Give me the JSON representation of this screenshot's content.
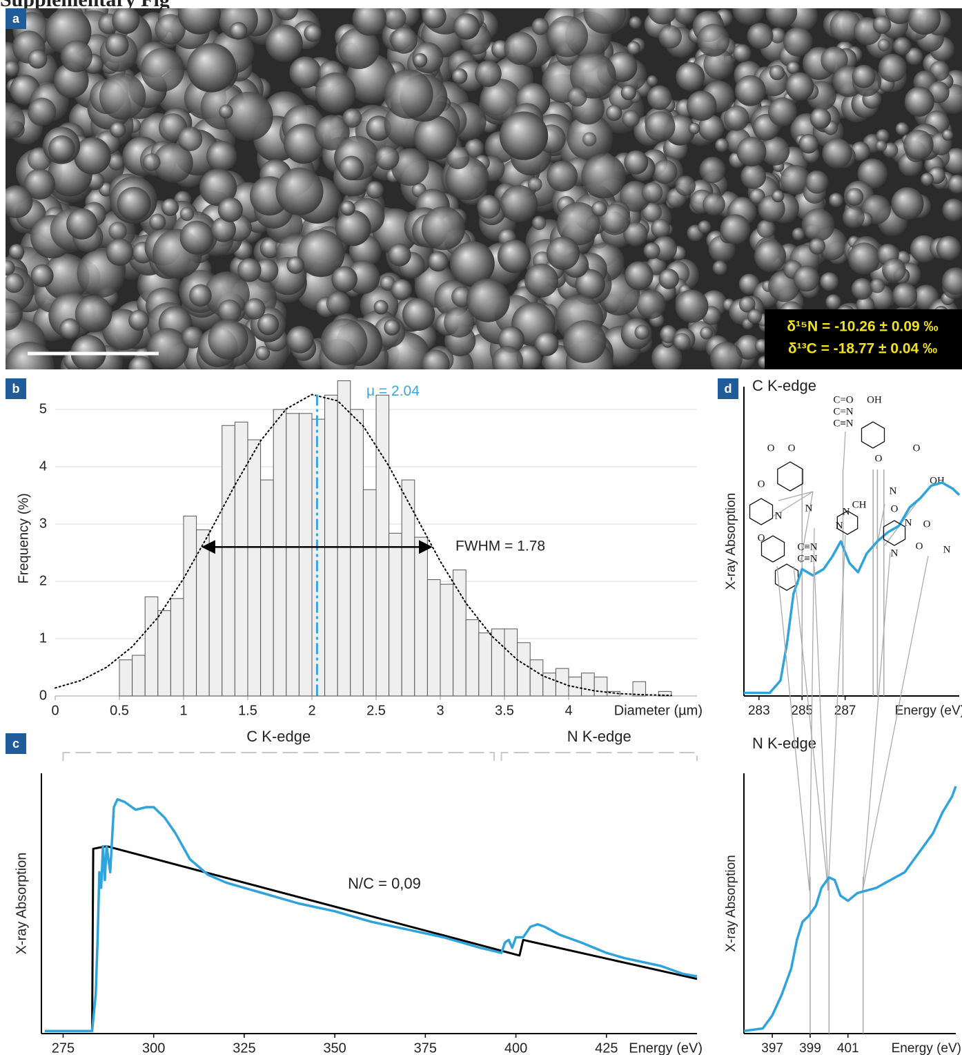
{
  "header": {
    "title": "Supplementary Fig"
  },
  "panel_a": {
    "label": "a",
    "annotations": [
      "δ¹⁵N = -10.26 ± 0.09 ‰",
      "δ¹³C = -18.77 ± 0.04 ‰"
    ]
  },
  "chart_data": [
    {
      "type": "histogram",
      "panel_label": "b",
      "bins": [
        0.5,
        0.6,
        0.7,
        0.8,
        0.9,
        1,
        1.1,
        1.2,
        1.3,
        1.4,
        1.5,
        1.6,
        1.7,
        1.8,
        1.9,
        2,
        2.1,
        2.2,
        2.3,
        2.4,
        2.5,
        2.6,
        2.7,
        2.8,
        2.9,
        3,
        3.1,
        3.2,
        3.3,
        3.4,
        3.5,
        3.6,
        3.7,
        3.8,
        3.9,
        4,
        4.1,
        4.2,
        4.3,
        4.4,
        4.5,
        4.6,
        4.7,
        4.8
      ],
      "values": [
        0.63,
        0.71,
        1.73,
        1.49,
        1.7,
        3.14,
        2.9,
        2.6,
        4.72,
        4.78,
        4.47,
        3.77,
        5.0,
        4.93,
        4.93,
        4.83,
        5.25,
        5.5,
        5.0,
        3.6,
        5.25,
        2.84,
        3.77,
        2.77,
        2.03,
        1.95,
        2.2,
        1.33,
        1.1,
        1.17,
        1.17,
        0.93,
        0.63,
        0.4,
        0.48,
        0.33,
        0.4,
        0.33,
        0.08,
        0,
        0.25,
        0,
        0.08
      ],
      "color": "#efefef",
      "xlim": [
        0,
        5
      ],
      "ylim": [
        0,
        5.5
      ],
      "xticks": [
        0,
        0.5,
        1,
        1.5,
        2,
        2.5,
        3,
        3.5,
        4
      ],
      "yticks": [
        0,
        1,
        2,
        3,
        4,
        5
      ],
      "grid": true,
      "xlabel": "Diameter (µm)",
      "ylabel": "Frequency (%)",
      "fit": {
        "x": [
          0,
          0.2,
          0.4,
          0.6,
          0.8,
          1,
          1.2,
          1.4,
          1.6,
          1.8,
          2,
          2.2,
          2.4,
          2.6,
          2.8,
          3,
          3.2,
          3.4,
          3.6,
          3.8,
          4,
          4.2,
          4.4,
          4.6,
          4.8
        ],
        "values": [
          0.14,
          0.27,
          0.5,
          0.86,
          1.37,
          2.05,
          2.84,
          3.68,
          4.45,
          5.01,
          5.26,
          5.15,
          4.71,
          4.01,
          3.18,
          2.35,
          1.62,
          1.05,
          0.63,
          0.35,
          0.18,
          0.09,
          0.04,
          0.02,
          0.01
        ]
      },
      "mean": {
        "value": 2.04,
        "label": "μ = 2.04",
        "color": "#3ba6d9"
      },
      "fwhm": {
        "label": "FWHM = 1.78",
        "x": [
          1.15,
          2.93
        ],
        "y": 2.6
      }
    },
    {
      "type": "line",
      "panel_label": "c",
      "xlim": [
        269,
        450
      ],
      "ylim": [
        0,
        1
      ],
      "xticks": [
        275,
        300,
        325,
        350,
        375,
        400,
        425
      ],
      "xlabel": "Energy (eV)",
      "ylabel": "X-ray Absorption",
      "series": [
        {
          "color": "#2ea3dc",
          "x": [
            270,
            283,
            284,
            284.5,
            285,
            285.5,
            286,
            286.5,
            287,
            288,
            289,
            290,
            292,
            295,
            298,
            300,
            303,
            306,
            310,
            315,
            320,
            325,
            330,
            340,
            350,
            360,
            370,
            380,
            390,
            396,
            397,
            398,
            399,
            400,
            402,
            404,
            406,
            408,
            412,
            418,
            425,
            430,
            440,
            446,
            450
          ],
          "values": [
            0.01,
            0.01,
            0.15,
            0.36,
            0.62,
            0.56,
            0.72,
            0.59,
            0.72,
            0.62,
            0.87,
            0.9,
            0.89,
            0.86,
            0.87,
            0.87,
            0.83,
            0.77,
            0.67,
            0.61,
            0.58,
            0.56,
            0.54,
            0.5,
            0.47,
            0.43,
            0.4,
            0.37,
            0.33,
            0.31,
            0.35,
            0.36,
            0.33,
            0.37,
            0.37,
            0.41,
            0.42,
            0.41,
            0.38,
            0.35,
            0.31,
            0.29,
            0.26,
            0.23,
            0.22
          ]
        },
        {
          "color": "#000000",
          "x": [
            270,
            283,
            283.3,
            287,
            401,
            402,
            450
          ],
          "values": [
            0.01,
            0.01,
            0.71,
            0.72,
            0.3,
            0.36,
            0.21
          ]
        }
      ],
      "brackets": [
        {
          "label": "C K-edge",
          "range": [
            275,
            394
          ]
        },
        {
          "label": "N K-edge",
          "range": [
            396,
            450
          ]
        }
      ],
      "annotation": "N/C = 0,09"
    },
    {
      "type": "line",
      "panel_label": "d",
      "title": "C K-edge",
      "xlim": [
        282.3,
        292.3
      ],
      "ylim": [
        0,
        1
      ],
      "xticks": [
        283,
        285,
        287
      ],
      "xlabel": "Energy (eV)",
      "ylabel": "X-ray Absorption",
      "series": [
        {
          "color": "#2ea3dc",
          "x": [
            282.3,
            283.5,
            284,
            284.3,
            284.6,
            285,
            285.5,
            286,
            286.4,
            286.8,
            287.2,
            287.6,
            288,
            288.5,
            289,
            289.5,
            290,
            290.5,
            291,
            291.5,
            292,
            292.3
          ],
          "values": [
            0.01,
            0.01,
            0.05,
            0.17,
            0.33,
            0.41,
            0.39,
            0.41,
            0.45,
            0.5,
            0.43,
            0.4,
            0.46,
            0.5,
            0.53,
            0.55,
            0.61,
            0.64,
            0.68,
            0.69,
            0.67,
            0.65
          ]
        }
      ],
      "markers": [
        285,
        286.9,
        288.3,
        288.5,
        288.8
      ],
      "structure_labels": [
        "O",
        "O",
        "O",
        "O",
        "C=O",
        "C=N",
        "C≡N",
        "OH",
        "O",
        "N",
        "O",
        "OH",
        "CH"
      ]
    },
    {
      "type": "line",
      "title": "N K-edge",
      "xlim": [
        395.5,
        406.7
      ],
      "ylim": [
        0,
        1
      ],
      "xticks": [
        397,
        399,
        401
      ],
      "xlabel": "Energy (eV)",
      "ylabel": "X-ray Absorption",
      "series": [
        {
          "color": "#2ea3dc",
          "x": [
            395.5,
            396.5,
            397,
            397.5,
            398,
            398.3,
            398.6,
            398.9,
            399.3,
            399.6,
            400,
            400.3,
            400.6,
            401,
            401.5,
            402,
            402.5,
            403,
            403.5,
            404,
            404.5,
            405,
            405.5,
            406,
            406.5,
            406.7
          ],
          "values": [
            0.01,
            0.02,
            0.07,
            0.15,
            0.25,
            0.36,
            0.43,
            0.45,
            0.49,
            0.56,
            0.6,
            0.59,
            0.53,
            0.51,
            0.54,
            0.55,
            0.56,
            0.58,
            0.6,
            0.62,
            0.67,
            0.72,
            0.77,
            0.85,
            0.91,
            0.95
          ]
        }
      ],
      "markers": [
        399,
        400,
        401.8
      ],
      "structure_labels": [
        "N",
        "N",
        "C≡N",
        "C≡N",
        "N",
        "N",
        "O",
        "N",
        "N",
        "O",
        "O",
        "N"
      ]
    }
  ]
}
